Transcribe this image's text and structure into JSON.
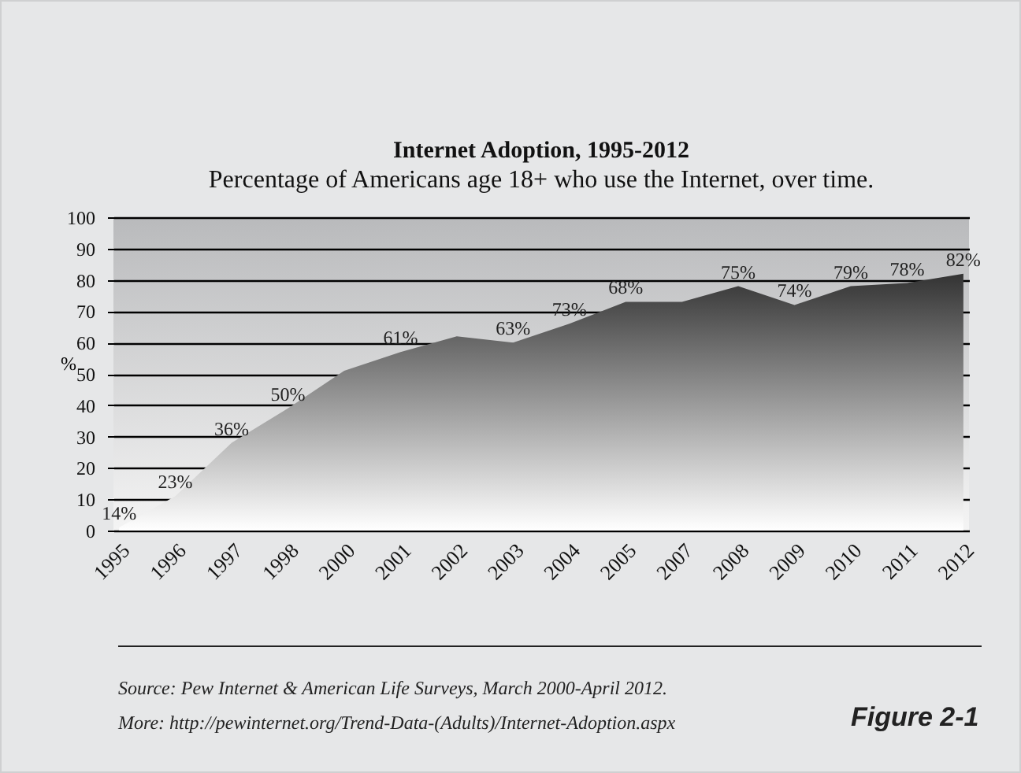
{
  "chart_data": {
    "type": "area",
    "title": "Internet Adoption, 1995-2012",
    "subtitle": "Percentage of Americans age 18+ who use the Internet, over time.",
    "ylabel": "%",
    "categories": [
      "1995",
      "1996",
      "1997",
      "1998",
      "2000",
      "2001",
      "2002",
      "2003",
      "2004",
      "2005",
      "2007",
      "2008",
      "2009",
      "2010",
      "2011",
      "2012"
    ],
    "series": [
      {
        "color": "#333333",
        "values": [
          1,
          11,
          28,
          39,
          51,
          57,
          62,
          60,
          66,
          73,
          73,
          78,
          72,
          78,
          79,
          82
        ]
      }
    ],
    "value_labels": [
      "14%",
      "23%",
      "36%",
      "50%",
      null,
      "61%",
      null,
      "63%",
      "73%",
      "68%",
      null,
      "75%",
      "74%",
      "79%",
      "78%",
      "82%"
    ],
    "ylim": [
      0,
      100
    ],
    "yticks": [
      0,
      10,
      20,
      30,
      40,
      50,
      60,
      70,
      80,
      90,
      100
    ],
    "grid": "y",
    "annotations": [
      "Source: Pew Internet & American Life Surveys, March 2000-April 2012.",
      "More: http://pewinternet.org/Trend-Data-(Adults)/Internet-Adoption.aspx",
      "Figure 2-1"
    ]
  }
}
